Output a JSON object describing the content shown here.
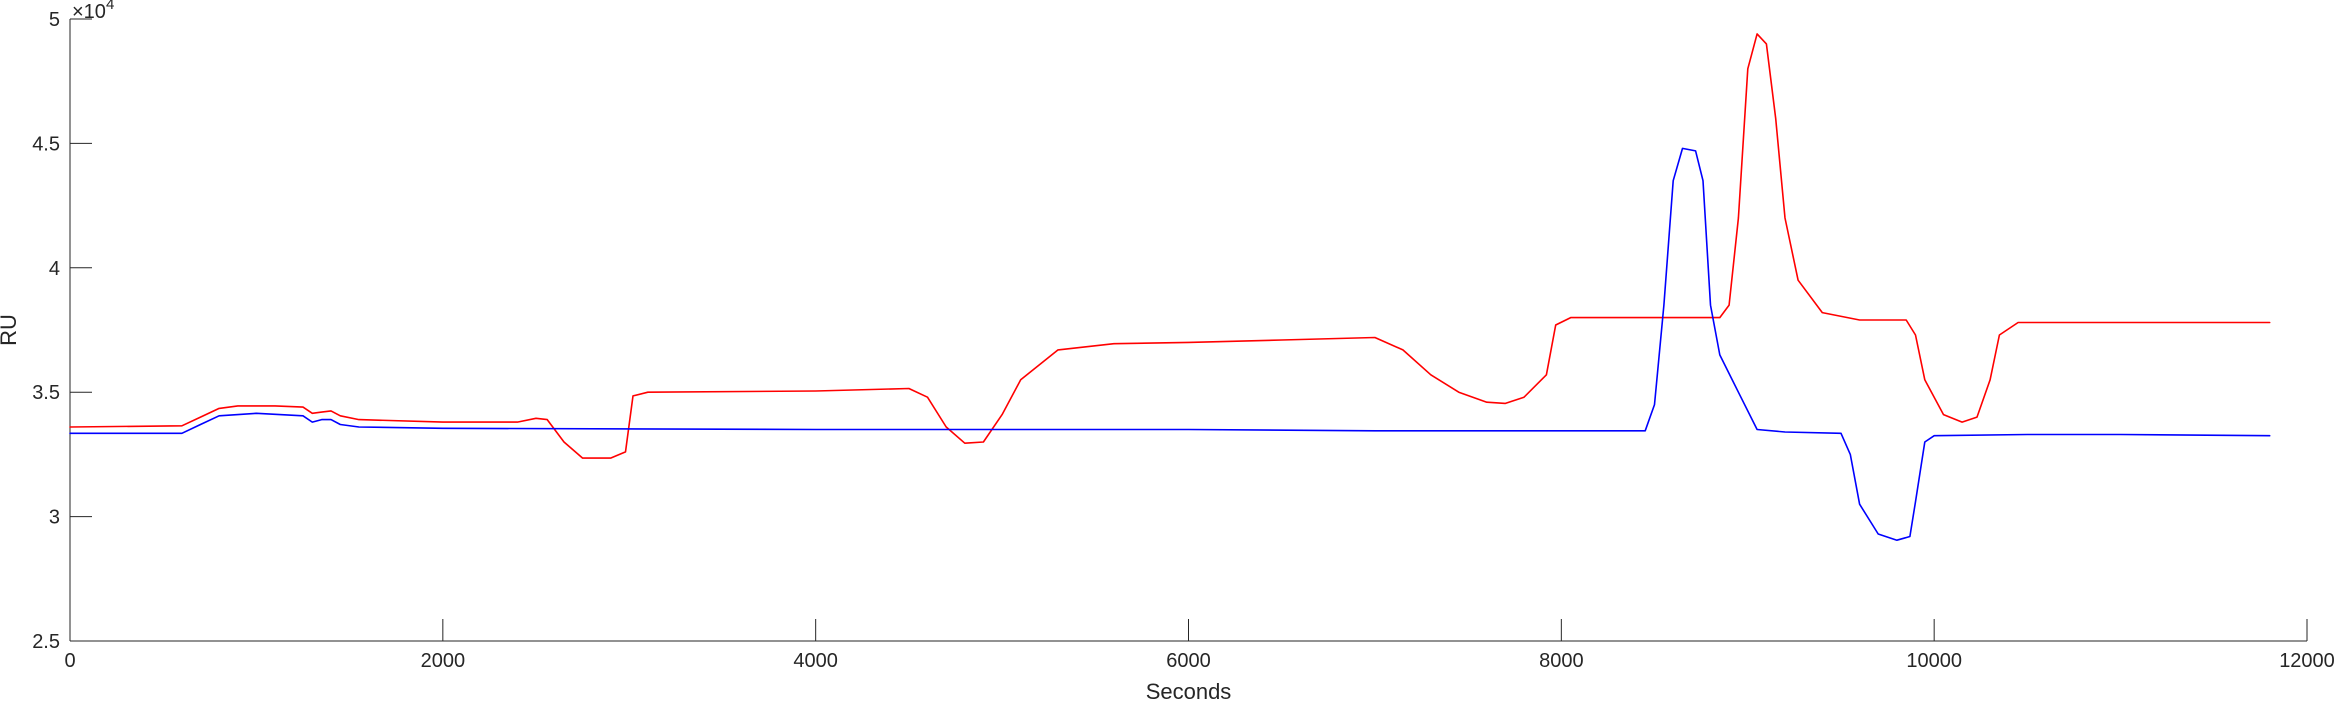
{
  "chart_data": {
    "type": "line",
    "title": "",
    "xlabel": "Seconds",
    "ylabel": "RU",
    "y_exponent_label": "×10",
    "y_exponent_power": "4",
    "xlim": [
      0,
      12000
    ],
    "ylim": [
      25000,
      50000
    ],
    "x_ticks": [
      0,
      2000,
      4000,
      6000,
      8000,
      10000,
      12000
    ],
    "x_tick_labels": [
      "0",
      "2000",
      "4000",
      "6000",
      "8000",
      "10000",
      "12000"
    ],
    "y_ticks": [
      25000,
      30000,
      35000,
      40000,
      45000,
      50000
    ],
    "y_tick_labels": [
      "2.5",
      "3",
      "3.5",
      "4",
      "4.5",
      "5"
    ],
    "grid": false,
    "series": [
      {
        "color": "#ff0000",
        "points": [
          [
            0,
            33600
          ],
          [
            600,
            33650
          ],
          [
            700,
            34000
          ],
          [
            800,
            34350
          ],
          [
            900,
            34450
          ],
          [
            1000,
            34450
          ],
          [
            1100,
            34450
          ],
          [
            1250,
            34400
          ],
          [
            1300,
            34150
          ],
          [
            1350,
            34200
          ],
          [
            1400,
            34250
          ],
          [
            1450,
            34050
          ],
          [
            1550,
            33900
          ],
          [
            2000,
            33800
          ],
          [
            2400,
            33800
          ],
          [
            2500,
            33950
          ],
          [
            2560,
            33900
          ],
          [
            2650,
            33000
          ],
          [
            2750,
            32350
          ],
          [
            2900,
            32350
          ],
          [
            2980,
            32600
          ],
          [
            3020,
            34850
          ],
          [
            3100,
            35000
          ],
          [
            4000,
            35050
          ],
          [
            4500,
            35150
          ],
          [
            4600,
            34800
          ],
          [
            4700,
            33600
          ],
          [
            4800,
            32950
          ],
          [
            4900,
            33000
          ],
          [
            5000,
            34100
          ],
          [
            5100,
            35500
          ],
          [
            5300,
            36700
          ],
          [
            5600,
            36950
          ],
          [
            6000,
            37000
          ],
          [
            6500,
            37100
          ],
          [
            7000,
            37200
          ],
          [
            7150,
            36700
          ],
          [
            7300,
            35700
          ],
          [
            7450,
            35000
          ],
          [
            7600,
            34600
          ],
          [
            7700,
            34550
          ],
          [
            7800,
            34800
          ],
          [
            7920,
            35700
          ],
          [
            7970,
            37700
          ],
          [
            8050,
            38000
          ],
          [
            8500,
            38000
          ],
          [
            8850,
            38000
          ],
          [
            8900,
            38500
          ],
          [
            8950,
            42000
          ],
          [
            9000,
            48000
          ],
          [
            9050,
            49400
          ],
          [
            9100,
            49000
          ],
          [
            9150,
            46000
          ],
          [
            9200,
            42000
          ],
          [
            9270,
            39500
          ],
          [
            9400,
            38200
          ],
          [
            9600,
            37900
          ],
          [
            9850,
            37900
          ],
          [
            9900,
            37300
          ],
          [
            9950,
            35500
          ],
          [
            10050,
            34100
          ],
          [
            10150,
            33800
          ],
          [
            10230,
            34000
          ],
          [
            10300,
            35500
          ],
          [
            10350,
            37300
          ],
          [
            10450,
            37800
          ],
          [
            11000,
            37800
          ],
          [
            11800,
            37800
          ]
        ]
      },
      {
        "color": "#0000ff",
        "points": [
          [
            0,
            33350
          ],
          [
            600,
            33350
          ],
          [
            700,
            33700
          ],
          [
            800,
            34050
          ],
          [
            1000,
            34150
          ],
          [
            1250,
            34050
          ],
          [
            1300,
            33800
          ],
          [
            1350,
            33900
          ],
          [
            1400,
            33900
          ],
          [
            1450,
            33700
          ],
          [
            1550,
            33600
          ],
          [
            2000,
            33550
          ],
          [
            4000,
            33500
          ],
          [
            6000,
            33500
          ],
          [
            7000,
            33450
          ],
          [
            8000,
            33450
          ],
          [
            8450,
            33450
          ],
          [
            8500,
            34500
          ],
          [
            8550,
            38500
          ],
          [
            8600,
            43500
          ],
          [
            8650,
            44800
          ],
          [
            8720,
            44700
          ],
          [
            8760,
            43500
          ],
          [
            8800,
            38500
          ],
          [
            8850,
            36500
          ],
          [
            8950,
            35000
          ],
          [
            9050,
            33500
          ],
          [
            9200,
            33400
          ],
          [
            9500,
            33350
          ],
          [
            9550,
            32500
          ],
          [
            9600,
            30500
          ],
          [
            9700,
            29300
          ],
          [
            9800,
            29050
          ],
          [
            9870,
            29200
          ],
          [
            9900,
            30600
          ],
          [
            9950,
            33000
          ],
          [
            10000,
            33250
          ],
          [
            10500,
            33300
          ],
          [
            11000,
            33300
          ],
          [
            11800,
            33250
          ]
        ]
      }
    ]
  }
}
